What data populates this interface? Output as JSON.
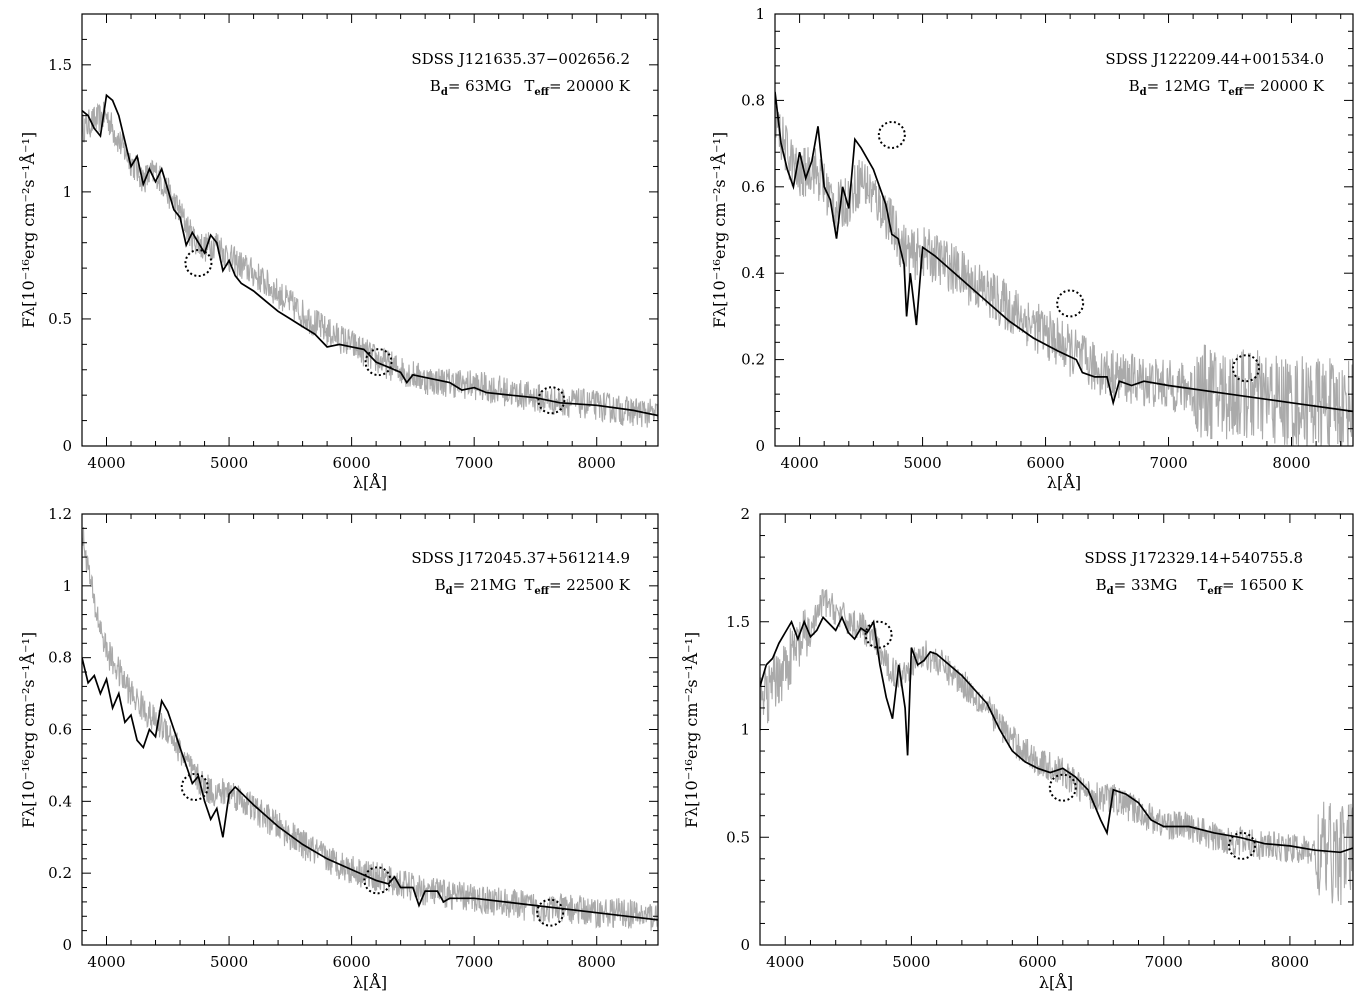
{
  "chart_data": [
    {
      "type": "line",
      "title": "",
      "xlabel": "λ[Å]",
      "ylabel": "Fλ[10⁻¹⁶erg cm⁻²s⁻¹Å⁻¹]",
      "xlim": [
        3800,
        8500
      ],
      "ylim": [
        0,
        1.7
      ],
      "xticks": [
        4000,
        5000,
        6000,
        7000,
        8000
      ],
      "yticks": [
        0,
        0.5,
        1,
        1.5
      ],
      "annotation": [
        "SDSS J121635.37−002656.2",
        "B_d = 63MG T_eff = 20000 K"
      ],
      "annotation_display": {
        "object": "SDSS J121635.37−002656.2",
        "bfield": "B",
        "bfield_sub": "d",
        "bfield_val": "=  63MG",
        "teff": "T",
        "teff_sub": "eff",
        "teff_val": "= 20000 K"
      },
      "model": {
        "x": [
          3800,
          3850,
          3900,
          3950,
          4000,
          4050,
          4100,
          4150,
          4200,
          4250,
          4300,
          4350,
          4400,
          4450,
          4500,
          4550,
          4600,
          4650,
          4700,
          4750,
          4800,
          4850,
          4900,
          4950,
          5000,
          5050,
          5100,
          5200,
          5300,
          5400,
          5500,
          5600,
          5700,
          5800,
          5900,
          6000,
          6100,
          6200,
          6300,
          6400,
          6450,
          6500,
          6600,
          6800,
          6900,
          7000,
          7100,
          7300,
          7500,
          7700,
          8000,
          8300,
          8500
        ],
        "y": [
          1.32,
          1.3,
          1.25,
          1.22,
          1.38,
          1.36,
          1.3,
          1.2,
          1.1,
          1.14,
          1.03,
          1.09,
          1.04,
          1.09,
          1.01,
          0.93,
          0.9,
          0.79,
          0.84,
          0.8,
          0.76,
          0.83,
          0.8,
          0.69,
          0.73,
          0.67,
          0.64,
          0.61,
          0.57,
          0.53,
          0.5,
          0.47,
          0.44,
          0.39,
          0.4,
          0.39,
          0.38,
          0.33,
          0.31,
          0.29,
          0.25,
          0.28,
          0.27,
          0.25,
          0.22,
          0.23,
          0.21,
          0.2,
          0.19,
          0.17,
          0.16,
          0.14,
          0.12
        ]
      },
      "observed": {
        "x": [
          3800,
          3900,
          4000,
          4100,
          4200,
          4300,
          4400,
          4500,
          4600,
          4700,
          4800,
          4900,
          5000,
          5200,
          5400,
          5600,
          5800,
          6000,
          6200,
          6400,
          6600,
          6800,
          7000,
          7200,
          7400,
          7600,
          7800,
          8000,
          8200,
          8400,
          8500
        ],
        "y": [
          1.25,
          1.28,
          1.3,
          1.2,
          1.12,
          1.05,
          1.08,
          1.0,
          0.92,
          0.82,
          0.78,
          0.8,
          0.74,
          0.68,
          0.6,
          0.52,
          0.45,
          0.4,
          0.34,
          0.3,
          0.26,
          0.25,
          0.24,
          0.22,
          0.2,
          0.18,
          0.17,
          0.16,
          0.14,
          0.13,
          0.12
        ]
      },
      "circles": [
        {
          "x": 4750,
          "y": 0.72
        },
        {
          "x": 6220,
          "y": 0.33
        },
        {
          "x": 7630,
          "y": 0.18
        }
      ]
    },
    {
      "type": "line",
      "title": "",
      "xlabel": "λ[Å]",
      "ylabel": "Fλ[10⁻¹⁶erg cm⁻²s⁻¹Å⁻¹]",
      "xlim": [
        3800,
        8500
      ],
      "ylim": [
        0,
        1
      ],
      "xticks": [
        4000,
        5000,
        6000,
        7000,
        8000
      ],
      "yticks": [
        0,
        0.2,
        0.4,
        0.6,
        0.8,
        1
      ],
      "annotation": [
        "SDSS J122209.44+001534.0",
        "B_d = 12MG T_eff = 20000 K"
      ],
      "annotation_display": {
        "object": "SDSS J122209.44+001534.0",
        "bfield": "B",
        "bfield_sub": "d",
        "bfield_val": "=  12MG",
        "teff": "T",
        "teff_sub": "eff",
        "teff_val": "= 20000 K"
      },
      "model": {
        "x": [
          3800,
          3850,
          3900,
          3950,
          4000,
          4050,
          4100,
          4150,
          4200,
          4250,
          4300,
          4350,
          4400,
          4450,
          4500,
          4600,
          4700,
          4750,
          4800,
          4850,
          4870,
          4900,
          4950,
          5000,
          5100,
          5300,
          5500,
          5700,
          5900,
          6100,
          6250,
          6300,
          6400,
          6500,
          6550,
          6600,
          6700,
          6800,
          7000,
          7500,
          8000,
          8500
        ],
        "y": [
          0.82,
          0.7,
          0.64,
          0.6,
          0.68,
          0.62,
          0.66,
          0.74,
          0.6,
          0.57,
          0.48,
          0.6,
          0.55,
          0.71,
          0.69,
          0.64,
          0.56,
          0.49,
          0.48,
          0.42,
          0.3,
          0.4,
          0.28,
          0.46,
          0.44,
          0.39,
          0.34,
          0.29,
          0.25,
          0.22,
          0.2,
          0.17,
          0.16,
          0.16,
          0.1,
          0.15,
          0.14,
          0.15,
          0.14,
          0.12,
          0.1,
          0.08
        ]
      },
      "observed": {
        "x": [
          3800,
          3900,
          4000,
          4100,
          4200,
          4300,
          4400,
          4500,
          4600,
          4700,
          4800,
          4900,
          5000,
          5200,
          5400,
          5600,
          5800,
          6000,
          6200,
          6400,
          6600,
          6800,
          7000,
          7200,
          7400,
          7600,
          7800,
          8000,
          8200,
          8400,
          8500
        ],
        "y": [
          0.75,
          0.68,
          0.62,
          0.65,
          0.6,
          0.55,
          0.57,
          0.62,
          0.58,
          0.54,
          0.48,
          0.44,
          0.45,
          0.42,
          0.38,
          0.34,
          0.3,
          0.26,
          0.22,
          0.18,
          0.16,
          0.15,
          0.14,
          0.13,
          0.12,
          0.12,
          0.11,
          0.1,
          0.1,
          0.09,
          0.1
        ]
      },
      "circles": [
        {
          "x": 4750,
          "y": 0.72
        },
        {
          "x": 6200,
          "y": 0.33
        },
        {
          "x": 7630,
          "y": 0.18
        }
      ]
    },
    {
      "type": "line",
      "title": "",
      "xlabel": "λ[Å]",
      "ylabel": "Fλ[10⁻¹⁶erg cm⁻²s⁻¹Å⁻¹]",
      "xlim": [
        3800,
        8500
      ],
      "ylim": [
        0,
        1.2
      ],
      "xticks": [
        4000,
        5000,
        6000,
        7000,
        8000
      ],
      "yticks": [
        0,
        0.2,
        0.4,
        0.6,
        0.8,
        1,
        1.2
      ],
      "annotation": [
        "SDSS J172045.37+561214.9",
        "B_d = 21MG T_eff = 22500 K"
      ],
      "annotation_display": {
        "object": "SDSS J172045.37+561214.9",
        "bfield": "B",
        "bfield_sub": "d",
        "bfield_val": "=  21MG",
        "teff": "T",
        "teff_sub": "eff",
        "teff_val": "= 22500 K"
      },
      "model": {
        "x": [
          3800,
          3850,
          3900,
          3950,
          4000,
          4050,
          4100,
          4150,
          4200,
          4250,
          4300,
          4350,
          4400,
          4450,
          4500,
          4550,
          4600,
          4650,
          4700,
          4750,
          4800,
          4850,
          4900,
          4950,
          5000,
          5050,
          5200,
          5400,
          5600,
          5800,
          6000,
          6200,
          6300,
          6350,
          6400,
          6500,
          6550,
          6600,
          6700,
          6750,
          6800,
          7000,
          7500,
          8000,
          8500
        ],
        "y": [
          0.8,
          0.73,
          0.75,
          0.7,
          0.74,
          0.66,
          0.7,
          0.62,
          0.64,
          0.57,
          0.55,
          0.6,
          0.58,
          0.68,
          0.65,
          0.6,
          0.55,
          0.5,
          0.45,
          0.47,
          0.4,
          0.35,
          0.38,
          0.3,
          0.42,
          0.44,
          0.39,
          0.33,
          0.28,
          0.24,
          0.21,
          0.18,
          0.17,
          0.19,
          0.16,
          0.16,
          0.11,
          0.15,
          0.15,
          0.12,
          0.13,
          0.13,
          0.11,
          0.09,
          0.07
        ]
      },
      "observed": {
        "x": [
          3800,
          3850,
          3900,
          4000,
          4100,
          4200,
          4300,
          4400,
          4500,
          4600,
          4700,
          4800,
          4900,
          5000,
          5200,
          5400,
          5600,
          5800,
          6000,
          6200,
          6400,
          6600,
          6800,
          7000,
          7200,
          7400,
          7600,
          7800,
          8000,
          8200,
          8400,
          8500
        ],
        "y": [
          1.15,
          1.05,
          0.95,
          0.82,
          0.76,
          0.7,
          0.66,
          0.62,
          0.6,
          0.54,
          0.48,
          0.44,
          0.42,
          0.43,
          0.38,
          0.33,
          0.28,
          0.24,
          0.21,
          0.19,
          0.17,
          0.15,
          0.14,
          0.13,
          0.12,
          0.11,
          0.1,
          0.1,
          0.09,
          0.09,
          0.08,
          0.08
        ]
      },
      "circles": [
        {
          "x": 4720,
          "y": 0.44
        },
        {
          "x": 6210,
          "y": 0.18
        },
        {
          "x": 7620,
          "y": 0.09
        }
      ]
    },
    {
      "type": "line",
      "title": "",
      "xlabel": "λ[Å]",
      "ylabel": "Fλ[10⁻¹⁶erg cm⁻²s⁻¹Å⁻¹]",
      "xlim": [
        3800,
        8500
      ],
      "ylim": [
        0,
        2
      ],
      "xticks": [
        4000,
        5000,
        6000,
        7000,
        8000
      ],
      "yticks": [
        0,
        0.5,
        1,
        1.5,
        2
      ],
      "annotation": [
        "SDSS J172329.14+540755.8",
        "B_d = 33MG T_eff = 16500 K"
      ],
      "annotation_display": {
        "object": "SDSS J172329.14+540755.8",
        "bfield": "B",
        "bfield_sub": "d",
        "bfield_val": "= 33MG",
        "teff": "T",
        "teff_sub": "eff",
        "teff_val": "= 16500 K"
      },
      "model": {
        "x": [
          3800,
          3850,
          3900,
          3950,
          4000,
          4050,
          4100,
          4150,
          4200,
          4250,
          4300,
          4350,
          4400,
          4450,
          4500,
          4550,
          4600,
          4650,
          4700,
          4750,
          4800,
          4850,
          4900,
          4950,
          4970,
          5000,
          5050,
          5100,
          5150,
          5200,
          5400,
          5600,
          5700,
          5800,
          5900,
          6000,
          6100,
          6200,
          6300,
          6400,
          6450,
          6500,
          6550,
          6600,
          6700,
          6800,
          6900,
          7000,
          7200,
          7400,
          7600,
          7800,
          8000,
          8200,
          8400,
          8500
        ],
        "y": [
          1.2,
          1.3,
          1.33,
          1.4,
          1.45,
          1.5,
          1.42,
          1.5,
          1.43,
          1.46,
          1.52,
          1.49,
          1.46,
          1.52,
          1.45,
          1.42,
          1.47,
          1.45,
          1.5,
          1.3,
          1.15,
          1.05,
          1.3,
          1.1,
          0.88,
          1.38,
          1.3,
          1.32,
          1.36,
          1.35,
          1.25,
          1.12,
          1.0,
          0.9,
          0.85,
          0.82,
          0.8,
          0.82,
          0.78,
          0.72,
          0.65,
          0.58,
          0.52,
          0.72,
          0.7,
          0.66,
          0.58,
          0.55,
          0.55,
          0.52,
          0.5,
          0.47,
          0.46,
          0.44,
          0.43,
          0.45
        ]
      },
      "observed": {
        "x": [
          3800,
          3900,
          4000,
          4100,
          4200,
          4300,
          4400,
          4500,
          4600,
          4700,
          4800,
          4900,
          5000,
          5100,
          5200,
          5400,
          5600,
          5800,
          6000,
          6200,
          6400,
          6600,
          6800,
          7000,
          7200,
          7400,
          7600,
          7800,
          8000,
          8200,
          8400,
          8500
        ],
        "y": [
          1.1,
          1.2,
          1.3,
          1.38,
          1.45,
          1.6,
          1.55,
          1.5,
          1.48,
          1.42,
          1.3,
          1.25,
          1.3,
          1.35,
          1.32,
          1.22,
          1.1,
          0.95,
          0.85,
          0.8,
          0.7,
          0.68,
          0.62,
          0.56,
          0.55,
          0.5,
          0.48,
          0.46,
          0.45,
          0.43,
          0.42,
          0.45
        ]
      },
      "circles": [
        {
          "x": 4740,
          "y": 1.44
        },
        {
          "x": 6200,
          "y": 0.73
        },
        {
          "x": 7620,
          "y": 0.46
        }
      ]
    }
  ]
}
